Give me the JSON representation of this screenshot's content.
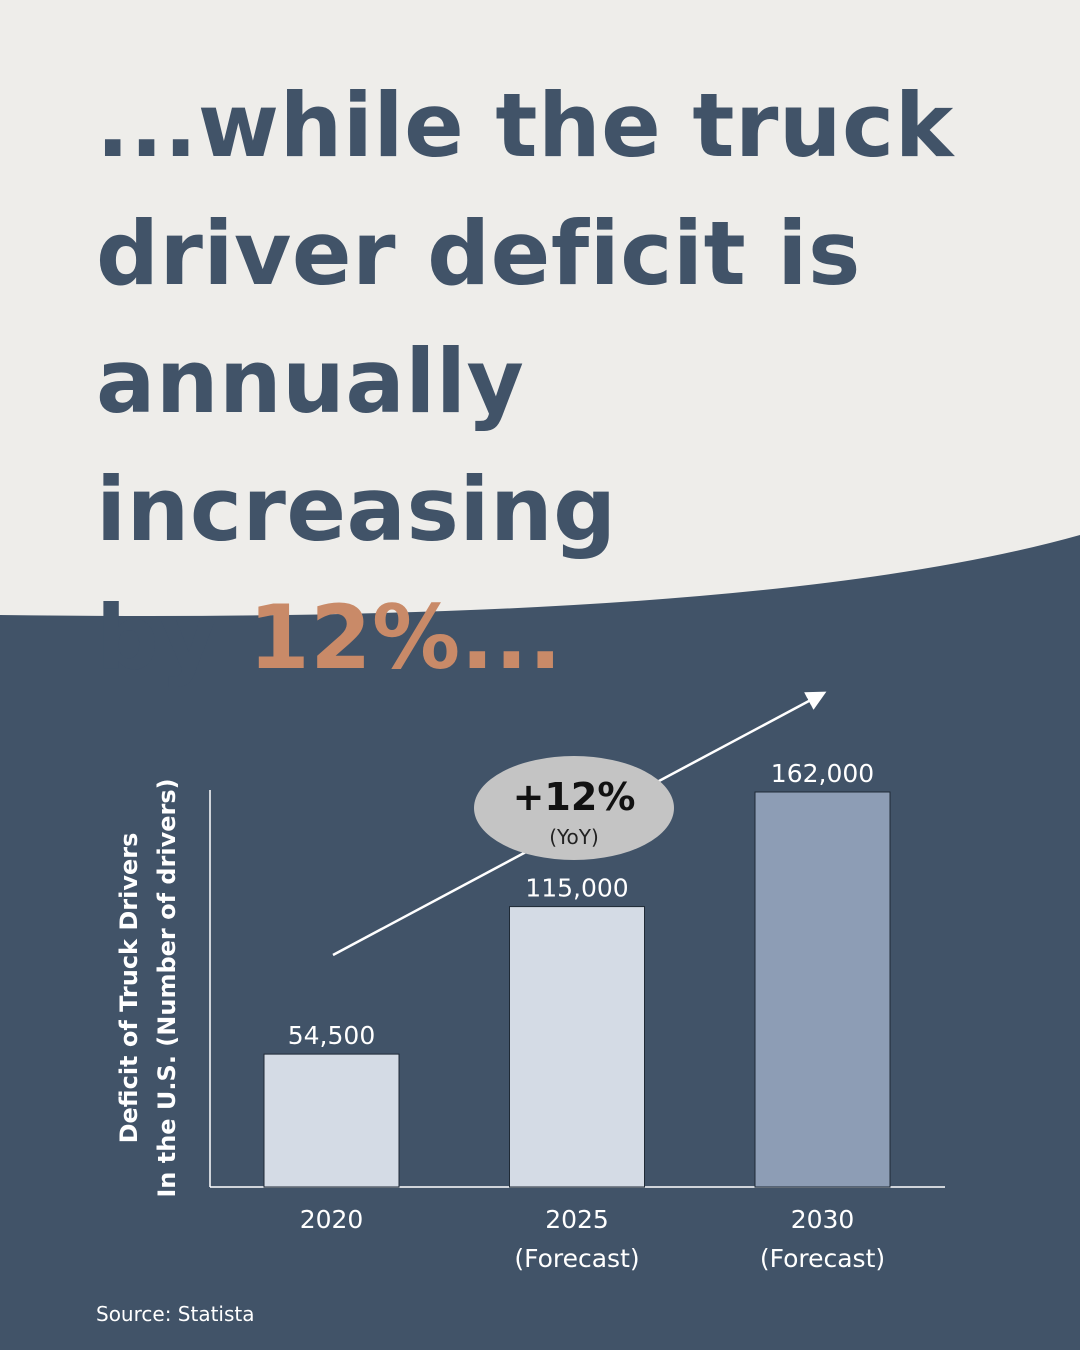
{
  "theme": {
    "background_light": "#eeedea",
    "background_dark": "#415368",
    "headline_color": "#415368",
    "accent_color": "#c98a68",
    "bar_light": "#d4dbe5",
    "bar_highlight": "#8d9db5",
    "badge_fill": "#c4c4c4"
  },
  "headline": {
    "line1": "...while the truck",
    "line2": "driver deficit is",
    "line3": "annually increasing",
    "line4_prefix": "by ",
    "line4_accent": "12%..."
  },
  "badge": {
    "value": "+12%",
    "note": "(YoY)"
  },
  "source": "Source: Statista",
  "chart_data": {
    "type": "bar",
    "ylabel_line1": "Deficit of Truck Drivers",
    "ylabel_line2": "In the U.S. (Number of drivers)",
    "categories": [
      [
        "2020"
      ],
      [
        "2025",
        "(Forecast)"
      ],
      [
        "2030",
        "(Forecast)"
      ]
    ],
    "series": [
      {
        "values": [
          54500,
          115000,
          162000
        ],
        "value_labels": [
          "54,500",
          "115,000",
          "162,000"
        ]
      }
    ],
    "highlight_index": 2,
    "ylim": [
      0,
      162000
    ],
    "grid": false,
    "legend": "none",
    "trend_arrow": true
  }
}
